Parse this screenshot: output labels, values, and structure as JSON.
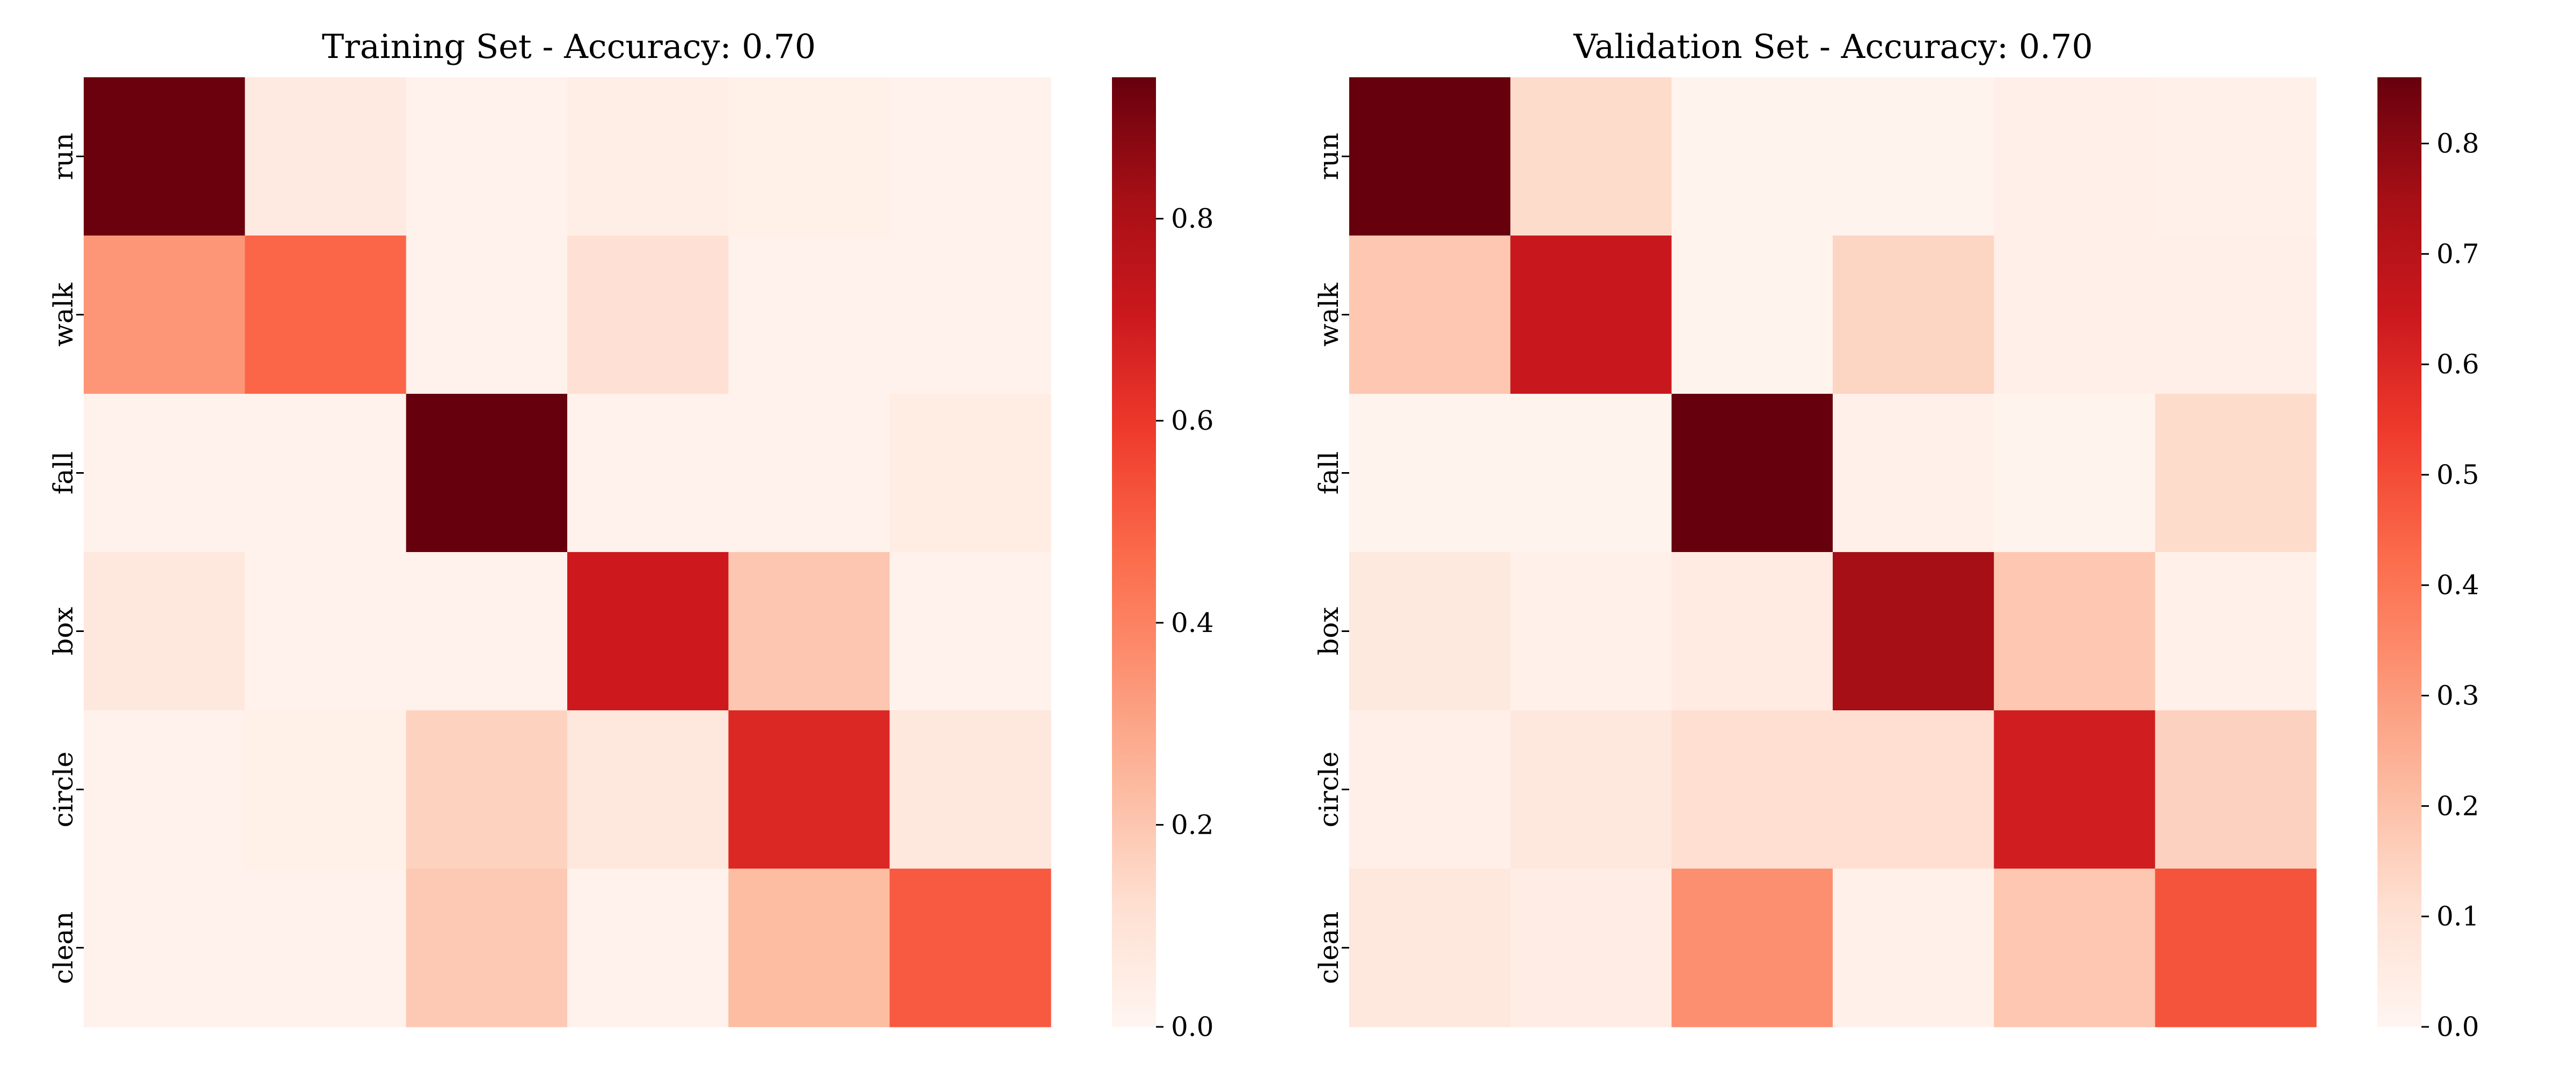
{
  "chart_data": [
    {
      "type": "heatmap",
      "title": "Training Set - Accuracy: 0.70",
      "xlabel": "",
      "ylabel": "",
      "row_labels": [
        "run",
        "walk",
        "fall",
        "box",
        "circle",
        "clean"
      ],
      "col_labels": [],
      "values": [
        [
          0.93,
          0.06,
          0.02,
          0.04,
          0.03,
          0.02
        ],
        [
          0.34,
          0.48,
          0.02,
          0.11,
          0.02,
          0.02
        ],
        [
          0.02,
          0.02,
          0.94,
          0.02,
          0.02,
          0.05
        ],
        [
          0.07,
          0.02,
          0.02,
          0.7,
          0.2,
          0.02
        ],
        [
          0.02,
          0.03,
          0.16,
          0.08,
          0.65,
          0.08
        ],
        [
          0.02,
          0.02,
          0.19,
          0.02,
          0.23,
          0.51
        ]
      ],
      "colormap": "Reds",
      "colorbar": {
        "vmin": 0.0,
        "vmax": 0.94,
        "ticks": [
          0.0,
          0.2,
          0.4,
          0.6,
          0.8
        ],
        "tick_labels": [
          "0.0",
          "0.2",
          "0.4",
          "0.6",
          "0.8"
        ]
      }
    },
    {
      "type": "heatmap",
      "title": "Validation Set - Accuracy: 0.70",
      "xlabel": "",
      "ylabel": "",
      "row_labels": [
        "run",
        "walk",
        "fall",
        "box",
        "circle",
        "clean"
      ],
      "col_labels": [],
      "values": [
        [
          0.86,
          0.12,
          0.01,
          0.01,
          0.03,
          0.02
        ],
        [
          0.18,
          0.65,
          0.01,
          0.14,
          0.03,
          0.03
        ],
        [
          0.01,
          0.01,
          0.86,
          0.02,
          0.01,
          0.12
        ],
        [
          0.06,
          0.02,
          0.05,
          0.75,
          0.18,
          0.02
        ],
        [
          0.03,
          0.07,
          0.11,
          0.11,
          0.63,
          0.15
        ],
        [
          0.07,
          0.04,
          0.33,
          0.02,
          0.18,
          0.48
        ]
      ],
      "colormap": "Reds",
      "colorbar": {
        "vmin": 0.0,
        "vmax": 0.86,
        "ticks": [
          0.0,
          0.1,
          0.2,
          0.3,
          0.4,
          0.5,
          0.6,
          0.7,
          0.8
        ],
        "tick_labels": [
          "0.0",
          "0.1",
          "0.2",
          "0.3",
          "0.4",
          "0.5",
          "0.6",
          "0.7",
          "0.8"
        ]
      }
    }
  ]
}
